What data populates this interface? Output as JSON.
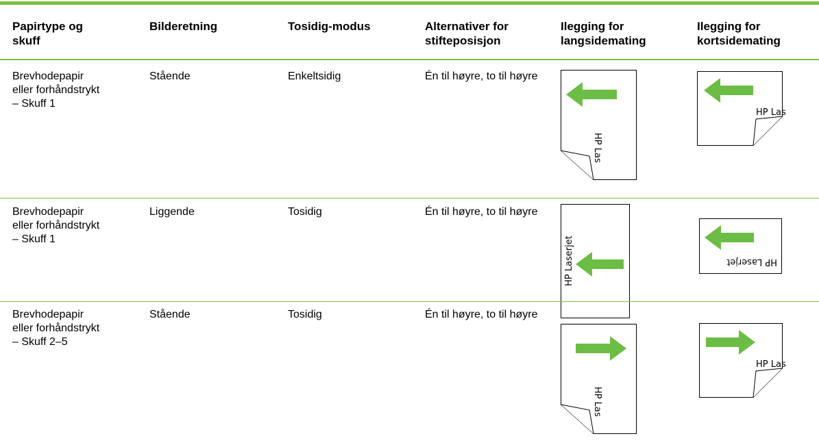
{
  "table": {
    "headers": [
      "Papirtype og skuff",
      "Bilderetning",
      "Tosidig-modus",
      "Alternativer for stifteposisjon",
      "Ilegging for langsidemating",
      "Ilegging for kortsidemating"
    ],
    "rows": [
      {
        "paper_type": [
          "Brevhodepapir",
          "eller forhåndstrykt",
          "– Skuff 1"
        ],
        "orientation": "Stående",
        "duplex": "Enkeltsidig",
        "staple": "Én til høyre, to til høyre",
        "long_edge_label": "HP Las",
        "short_edge_label": "HP Las"
      },
      {
        "paper_type": [
          "Brevhodepapir",
          "eller forhåndstrykt",
          "– Skuff 1"
        ],
        "orientation": "Liggende",
        "duplex": "Tosidig",
        "staple": "Én til høyre, to til høyre",
        "long_edge_label": "HP Laserjet",
        "short_edge_label": "HP Laserjet"
      },
      {
        "paper_type": [
          "Brevhodepapir",
          "eller forhåndstrykt",
          "– Skuff 2–5"
        ],
        "orientation": "Stående",
        "duplex": "Tosidig",
        "staple": "Én til høyre, to til høyre",
        "long_edge_label": "HP Las",
        "short_edge_label": "HP Las"
      }
    ]
  }
}
